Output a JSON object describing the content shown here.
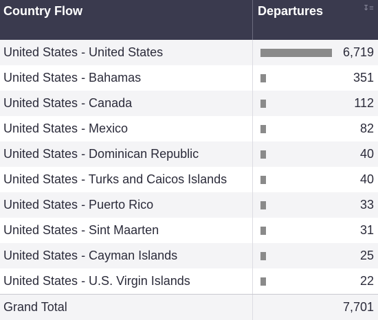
{
  "header": {
    "col1": "Country Flow",
    "col2": "Departures",
    "sort_icon": "sort-descending-icon"
  },
  "rows": [
    {
      "label": "United States - United States",
      "value": "6,719",
      "fraction": 1.0
    },
    {
      "label": "United States - Bahamas",
      "value": "351",
      "fraction": 0.0522
    },
    {
      "label": "United States - Canada",
      "value": "112",
      "fraction": 0.0167
    },
    {
      "label": "United States - Mexico",
      "value": "82",
      "fraction": 0.0122
    },
    {
      "label": "United States - Dominican Republic",
      "value": "40",
      "fraction": 0.006
    },
    {
      "label": "United States - Turks and Caicos Islands",
      "value": "40",
      "fraction": 0.006
    },
    {
      "label": "United States - Puerto Rico",
      "value": "33",
      "fraction": 0.0049
    },
    {
      "label": "United States - Sint Maarten",
      "value": "31",
      "fraction": 0.0046
    },
    {
      "label": "United States - Cayman Islands",
      "value": "25",
      "fraction": 0.0037
    },
    {
      "label": "United States - U.S. Virgin Islands",
      "value": "22",
      "fraction": 0.0033
    }
  ],
  "total": {
    "label": "Grand Total",
    "value": "7,701"
  }
}
